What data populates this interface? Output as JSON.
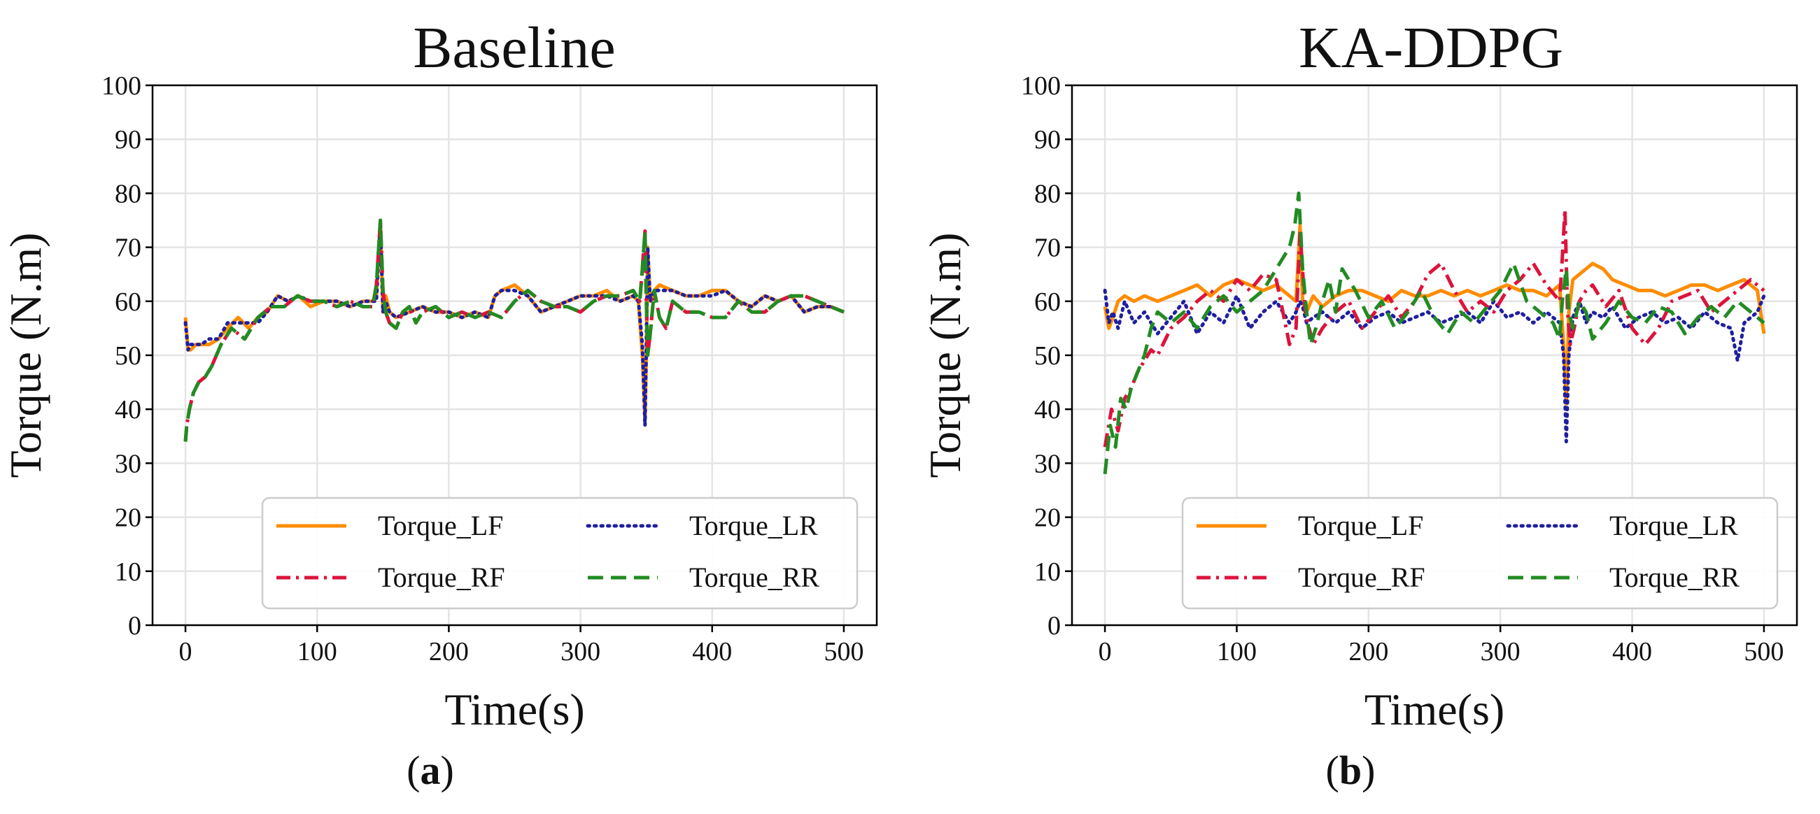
{
  "chart_data": [
    {
      "type": "line",
      "title": "Baseline",
      "xlabel": "Time(s)",
      "ylabel": "Torque (N.m)",
      "xlim": [
        -25,
        525
      ],
      "ylim": [
        0,
        100
      ],
      "xticks": [
        0,
        100,
        200,
        300,
        400,
        500
      ],
      "yticks": [
        0,
        10,
        20,
        30,
        40,
        50,
        60,
        70,
        80,
        90,
        100
      ],
      "grid": true,
      "legend_position": "lower-right",
      "caption": "a",
      "series": [
        {
          "name": "Torque_LF",
          "color": "#ff8c00",
          "style": "solid",
          "x": [
            0,
            2,
            4,
            8,
            12,
            18,
            25,
            32,
            40,
            48,
            55,
            62,
            70,
            78,
            86,
            95,
            105,
            115,
            125,
            135,
            142,
            145,
            148,
            150,
            152,
            155,
            160,
            170,
            180,
            190,
            200,
            210,
            220,
            230,
            235,
            240,
            250,
            260,
            270,
            280,
            290,
            300,
            310,
            320,
            330,
            340,
            344,
            347,
            349,
            350,
            351,
            353,
            356,
            360,
            370,
            380,
            390,
            400,
            410,
            420,
            430,
            440,
            450,
            460,
            470,
            480,
            490,
            500
          ],
          "y": [
            57,
            51,
            51,
            52,
            52,
            52,
            53,
            55,
            57,
            55,
            57,
            58,
            61,
            60,
            61,
            59,
            60,
            60,
            59,
            60,
            60,
            61,
            75,
            58,
            61,
            58,
            57,
            58,
            59,
            58,
            58,
            57,
            58,
            57,
            61,
            62,
            63,
            61,
            58,
            59,
            60,
            61,
            61,
            62,
            60,
            61,
            60,
            50,
            38,
            50,
            70,
            60,
            62,
            63,
            62,
            61,
            61,
            62,
            62,
            60,
            59,
            61,
            60,
            61,
            58,
            59,
            59,
            58
          ]
        },
        {
          "name": "Torque_LR",
          "color": "#1f1fa0",
          "style": "dotted",
          "x": [
            0,
            2,
            4,
            8,
            12,
            18,
            25,
            32,
            40,
            48,
            55,
            62,
            70,
            78,
            86,
            95,
            105,
            115,
            125,
            135,
            142,
            145,
            148,
            150,
            152,
            155,
            160,
            170,
            180,
            190,
            200,
            210,
            220,
            230,
            235,
            240,
            250,
            260,
            270,
            280,
            290,
            300,
            310,
            320,
            330,
            340,
            344,
            347,
            349,
            350,
            351,
            353,
            356,
            360,
            370,
            380,
            390,
            400,
            410,
            420,
            430,
            440,
            450,
            460,
            470,
            480,
            490,
            500
          ],
          "y": [
            56,
            51,
            52,
            52,
            52,
            53,
            53,
            56,
            56,
            56,
            56,
            58,
            61,
            60,
            61,
            60,
            60,
            60,
            59,
            60,
            60,
            60,
            74,
            58,
            60,
            58,
            57,
            58,
            59,
            58,
            58,
            57,
            58,
            57,
            61,
            62,
            62,
            61,
            58,
            59,
            60,
            61,
            61,
            61,
            60,
            61,
            60,
            52,
            37,
            52,
            70,
            60,
            62,
            62,
            62,
            61,
            61,
            61,
            62,
            60,
            59,
            61,
            60,
            61,
            58,
            59,
            59,
            58
          ]
        },
        {
          "name": "Torque_RF",
          "color": "#dc143c",
          "style": "dashdot",
          "x": [
            0,
            1,
            3,
            6,
            10,
            15,
            20,
            27,
            35,
            45,
            55,
            65,
            75,
            85,
            95,
            105,
            115,
            125,
            135,
            142,
            145,
            148,
            150,
            152,
            155,
            160,
            165,
            170,
            175,
            180,
            190,
            200,
            210,
            220,
            230,
            240,
            250,
            260,
            270,
            280,
            290,
            300,
            310,
            320,
            330,
            340,
            345,
            347,
            349,
            350,
            351,
            353,
            356,
            360,
            365,
            370,
            380,
            390,
            400,
            410,
            420,
            430,
            440,
            450,
            460,
            470,
            480,
            490,
            500
          ],
          "y": [
            34,
            37,
            40,
            43,
            45,
            46,
            48,
            52,
            55,
            53,
            57,
            59,
            59,
            61,
            60,
            60,
            59,
            60,
            59,
            59,
            63,
            75,
            62,
            58,
            56,
            55,
            58,
            59,
            56,
            58,
            59,
            57,
            58,
            57,
            58,
            57,
            60,
            62,
            60,
            59,
            59,
            58,
            60,
            61,
            61,
            62,
            60,
            66,
            73,
            60,
            50,
            54,
            62,
            57,
            55,
            60,
            58,
            58,
            57,
            57,
            60,
            58,
            58,
            60,
            61,
            61,
            60,
            59,
            58
          ]
        },
        {
          "name": "Torque_RR",
          "color": "#228b22",
          "style": "dashed",
          "x": [
            0,
            1,
            3,
            6,
            10,
            15,
            20,
            27,
            35,
            45,
            55,
            65,
            75,
            85,
            95,
            105,
            115,
            125,
            135,
            142,
            145,
            148,
            150,
            152,
            155,
            160,
            165,
            170,
            175,
            180,
            190,
            200,
            210,
            220,
            230,
            240,
            250,
            260,
            270,
            280,
            290,
            300,
            310,
            320,
            330,
            340,
            345,
            347,
            349,
            350,
            351,
            353,
            356,
            360,
            365,
            370,
            380,
            390,
            400,
            410,
            420,
            430,
            440,
            450,
            460,
            470,
            480,
            490,
            500
          ],
          "y": [
            34,
            37,
            40,
            43,
            45,
            46,
            48,
            52,
            55,
            53,
            57,
            59,
            59,
            61,
            60,
            60,
            59,
            60,
            59,
            59,
            63,
            75,
            62,
            58,
            56,
            55,
            58,
            59,
            56,
            58,
            59,
            57,
            58,
            57,
            58,
            57,
            60,
            62,
            60,
            59,
            59,
            58,
            60,
            61,
            61,
            62,
            60,
            66,
            73,
            60,
            50,
            54,
            62,
            57,
            55,
            60,
            58,
            58,
            57,
            57,
            60,
            58,
            58,
            60,
            61,
            61,
            60,
            59,
            58
          ]
        }
      ]
    },
    {
      "type": "line",
      "title": "KA-DDPG",
      "xlabel": "Time(s)",
      "ylabel": "Torque (N.m)",
      "xlim": [
        -25,
        525
      ],
      "ylim": [
        0,
        100
      ],
      "xticks": [
        0,
        100,
        200,
        300,
        400,
        500
      ],
      "yticks": [
        0,
        10,
        20,
        30,
        40,
        50,
        60,
        70,
        80,
        90,
        100
      ],
      "grid": true,
      "legend_position": "lower-right",
      "caption": "b",
      "series": [
        {
          "name": "Torque_LF",
          "color": "#ff8c00",
          "style": "solid",
          "x": [
            0,
            3,
            6,
            10,
            15,
            22,
            30,
            40,
            50,
            60,
            70,
            80,
            90,
            100,
            110,
            120,
            130,
            140,
            145,
            148,
            150,
            153,
            158,
            165,
            175,
            185,
            195,
            205,
            215,
            225,
            235,
            245,
            255,
            265,
            275,
            285,
            295,
            305,
            315,
            325,
            335,
            345,
            348,
            350,
            352,
            355,
            360,
            365,
            370,
            378,
            385,
            395,
            405,
            415,
            425,
            435,
            445,
            455,
            465,
            475,
            485,
            495,
            500
          ],
          "y": [
            59,
            55,
            57,
            60,
            61,
            60,
            61,
            60,
            61,
            62,
            63,
            61,
            63,
            64,
            63,
            62,
            63,
            61,
            60,
            74,
            60,
            58,
            61,
            59,
            61,
            62,
            62,
            61,
            60,
            62,
            61,
            61,
            62,
            61,
            62,
            61,
            62,
            63,
            62,
            62,
            61,
            63,
            52,
            41,
            58,
            64,
            65,
            66,
            67,
            66,
            64,
            63,
            62,
            62,
            61,
            62,
            63,
            63,
            62,
            63,
            64,
            62,
            54
          ]
        },
        {
          "name": "Torque_LR",
          "color": "#1f1fa0",
          "style": "dotted",
          "x": [
            0,
            3,
            6,
            10,
            15,
            22,
            30,
            40,
            50,
            60,
            70,
            80,
            90,
            100,
            110,
            120,
            130,
            140,
            145,
            148,
            150,
            153,
            158,
            165,
            175,
            185,
            195,
            205,
            215,
            225,
            235,
            245,
            255,
            265,
            275,
            285,
            295,
            305,
            315,
            325,
            335,
            345,
            348,
            350,
            352,
            355,
            360,
            365,
            370,
            378,
            385,
            395,
            405,
            415,
            425,
            435,
            445,
            455,
            465,
            475,
            480,
            485,
            495,
            500
          ],
          "y": [
            62,
            56,
            58,
            55,
            60,
            56,
            58,
            54,
            57,
            60,
            54,
            58,
            56,
            61,
            55,
            58,
            60,
            56,
            58,
            60,
            59,
            56,
            57,
            58,
            56,
            58,
            55,
            57,
            58,
            56,
            57,
            58,
            56,
            57,
            58,
            56,
            60,
            57,
            58,
            56,
            58,
            56,
            50,
            34,
            50,
            57,
            60,
            56,
            58,
            57,
            59,
            55,
            57,
            58,
            56,
            57,
            55,
            58,
            56,
            55,
            49,
            56,
            58,
            61
          ]
        },
        {
          "name": "Torque_RF",
          "color": "#dc143c",
          "style": "dashdot",
          "x": [
            0,
            5,
            10,
            15,
            20,
            25,
            30,
            35,
            40,
            50,
            60,
            70,
            80,
            90,
            100,
            110,
            120,
            130,
            135,
            140,
            145,
            148,
            152,
            158,
            165,
            175,
            185,
            195,
            205,
            215,
            225,
            235,
            245,
            255,
            265,
            275,
            285,
            295,
            305,
            315,
            325,
            335,
            345,
            347,
            349,
            351,
            353,
            356,
            360,
            365,
            370,
            380,
            390,
            400,
            410,
            420,
            430,
            440,
            450,
            460,
            470,
            480,
            490,
            500
          ],
          "y": [
            33,
            40,
            36,
            42,
            44,
            47,
            49,
            51,
            50,
            55,
            57,
            60,
            62,
            60,
            64,
            62,
            65,
            64,
            58,
            52,
            55,
            73,
            58,
            52,
            55,
            58,
            60,
            55,
            58,
            61,
            57,
            60,
            65,
            67,
            62,
            58,
            60,
            58,
            62,
            64,
            67,
            63,
            60,
            68,
            77,
            58,
            52,
            55,
            60,
            62,
            63,
            59,
            62,
            55,
            52,
            55,
            60,
            61,
            62,
            58,
            60,
            62,
            64,
            62
          ]
        },
        {
          "name": "Torque_RR",
          "color": "#228b22",
          "style": "dashed",
          "x": [
            0,
            4,
            8,
            12,
            16,
            20,
            25,
            30,
            35,
            40,
            50,
            60,
            70,
            80,
            90,
            100,
            110,
            120,
            130,
            140,
            144,
            147,
            150,
            153,
            156,
            160,
            165,
            170,
            175,
            180,
            190,
            200,
            210,
            220,
            230,
            240,
            250,
            260,
            270,
            280,
            290,
            300,
            310,
            320,
            330,
            340,
            345,
            347,
            350,
            352,
            355,
            360,
            365,
            370,
            380,
            390,
            400,
            410,
            420,
            430,
            440,
            450,
            460,
            470,
            480,
            490,
            500
          ],
          "y": [
            28,
            37,
            33,
            42,
            40,
            44,
            47,
            50,
            55,
            58,
            56,
            58,
            55,
            59,
            61,
            58,
            60,
            62,
            66,
            70,
            74,
            80,
            66,
            58,
            52,
            55,
            60,
            64,
            58,
            66,
            62,
            57,
            60,
            55,
            58,
            62,
            57,
            54,
            58,
            56,
            59,
            62,
            67,
            60,
            58,
            56,
            53,
            60,
            66,
            58,
            55,
            60,
            58,
            53,
            56,
            60,
            57,
            56,
            59,
            58,
            54,
            57,
            59,
            57,
            60,
            58,
            56
          ]
        }
      ]
    }
  ]
}
